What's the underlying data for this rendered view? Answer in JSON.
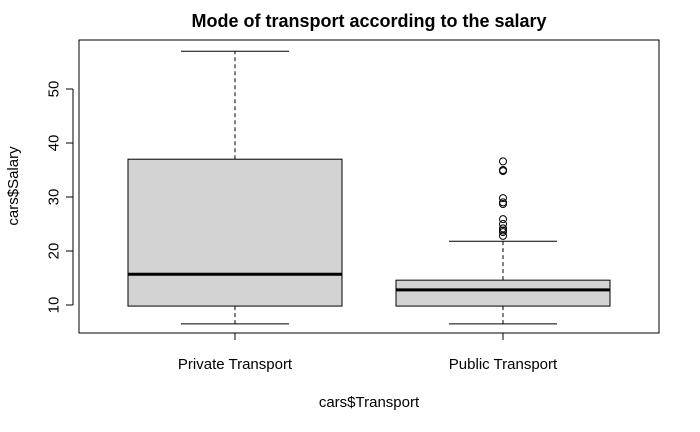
{
  "chart_data": {
    "type": "boxplot",
    "title": "Mode of transport according to the salary",
    "xlabel": "cars$Transport",
    "ylabel": "cars$Salary",
    "ylim": [
      4.5,
      59
    ],
    "yticks": [
      10,
      20,
      30,
      40,
      50
    ],
    "box_fill": "#d3d3d3",
    "categories": [
      "Private Transport",
      "Public Transport"
    ],
    "boxes": [
      {
        "name": "Private Transport",
        "whisker_low": 6.5,
        "q1": 9.8,
        "median": 15.7,
        "q3": 37.0,
        "whisker_high": 57.0,
        "outliers": []
      },
      {
        "name": "Public Transport",
        "whisker_low": 6.5,
        "q1": 9.8,
        "median": 12.8,
        "q3": 14.6,
        "whisker_high": 21.8,
        "outliers": [
          22.8,
          23.5,
          23.8,
          24.2,
          25.0,
          25.9,
          28.7,
          29.0,
          29.8,
          34.8,
          35.0,
          36.6
        ]
      }
    ]
  }
}
